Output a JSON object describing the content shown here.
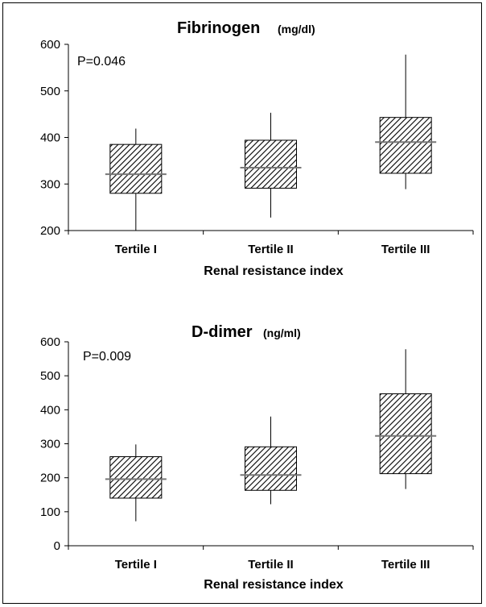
{
  "chart_data": [
    {
      "type": "box",
      "title": "Fibrinogen",
      "unit": "(mg/dl)",
      "xlabel": "Renal resistance index",
      "ylabel": "",
      "ylim": [
        200,
        600
      ],
      "yticks": [
        200,
        300,
        400,
        500,
        600
      ],
      "annotation": "P=0.046",
      "categories": [
        "Tertile I",
        "Tertile II",
        "Tertile III"
      ],
      "boxes": [
        {
          "min": 200,
          "q1": 280,
          "median": 321,
          "q3": 385,
          "max": 419
        },
        {
          "min": 228,
          "q1": 291,
          "median": 335,
          "q3": 394,
          "max": 453
        },
        {
          "min": 289,
          "q1": 323,
          "median": 390,
          "q3": 443,
          "max": 578
        }
      ]
    },
    {
      "type": "box",
      "title": "D-dimer",
      "unit": "(ng/ml)",
      "xlabel": "Renal resistance index",
      "ylabel": "",
      "ylim": [
        0,
        600
      ],
      "yticks": [
        0,
        100,
        200,
        300,
        400,
        500,
        600
      ],
      "annotation": "P=0.009",
      "categories": [
        "Tertile I",
        "Tertile II",
        "Tertile III"
      ],
      "boxes": [
        {
          "min": 72,
          "q1": 140,
          "median": 196,
          "q3": 262,
          "max": 298
        },
        {
          "min": 122,
          "q1": 163,
          "median": 208,
          "q3": 291,
          "max": 380
        },
        {
          "min": 167,
          "q1": 212,
          "median": 323,
          "q3": 447,
          "max": 578
        }
      ]
    }
  ]
}
